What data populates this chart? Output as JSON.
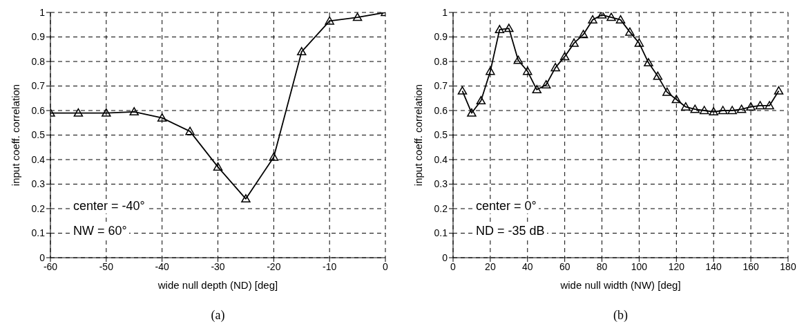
{
  "chart_data": [
    {
      "type": "line",
      "xlabel": "wide null depth (ND) [deg]",
      "ylabel": "input coeff. correlation",
      "x": [
        -60,
        -55,
        -50,
        -45,
        -40,
        -35,
        -30,
        -25,
        -20,
        -15,
        -10,
        -5,
        0
      ],
      "series": [
        {
          "color": "#000000",
          "values": [
            0.59,
            0.59,
            0.59,
            0.595,
            0.57,
            0.515,
            0.37,
            0.24,
            0.41,
            0.84,
            0.965,
            0.98,
            1.0
          ]
        }
      ],
      "xlim": [
        -60,
        0
      ],
      "xticks": [
        -60,
        -50,
        -40,
        -30,
        -20,
        -10,
        0
      ],
      "ylim": [
        0,
        1
      ],
      "yticks": [
        0,
        0.1,
        0.2,
        0.3,
        0.4,
        0.5,
        0.6,
        0.7,
        0.8,
        0.9,
        1
      ],
      "grid": true,
      "marker": "triangle",
      "line_style": "solid",
      "legend": false,
      "annotations": [
        "center = -40°",
        "NW = 60°",
        "(a)"
      ]
    },
    {
      "type": "line",
      "xlabel": "wide null width (NW) [deg]",
      "ylabel": "input coeff. correlation",
      "x": [
        5,
        10,
        15,
        20,
        25,
        30,
        35,
        40,
        45,
        50,
        55,
        60,
        65,
        70,
        75,
        80,
        85,
        90,
        95,
        100,
        105,
        110,
        115,
        120,
        125,
        130,
        135,
        140,
        145,
        150,
        155,
        160,
        165,
        170,
        175
      ],
      "series": [
        {
          "color": "#000000",
          "values": [
            0.68,
            0.59,
            0.64,
            0.76,
            0.93,
            0.935,
            0.805,
            0.76,
            0.685,
            0.705,
            0.775,
            0.82,
            0.875,
            0.91,
            0.97,
            0.99,
            0.98,
            0.97,
            0.92,
            0.875,
            0.795,
            0.74,
            0.675,
            0.645,
            0.615,
            0.605,
            0.6,
            0.595,
            0.6,
            0.6,
            0.605,
            0.615,
            0.62,
            0.62,
            0.68
          ]
        }
      ],
      "xlim": [
        0,
        180
      ],
      "xticks": [
        0,
        20,
        40,
        60,
        80,
        100,
        120,
        140,
        160,
        180
      ],
      "ylim": [
        0,
        1
      ],
      "yticks": [
        0,
        0.1,
        0.2,
        0.3,
        0.4,
        0.5,
        0.6,
        0.7,
        0.8,
        0.9,
        1
      ],
      "grid": true,
      "marker": "triangle",
      "line_style": "solid",
      "legend": false,
      "annotations": [
        "center = 0°",
        "ND = -35 dB",
        "(b)"
      ]
    }
  ]
}
